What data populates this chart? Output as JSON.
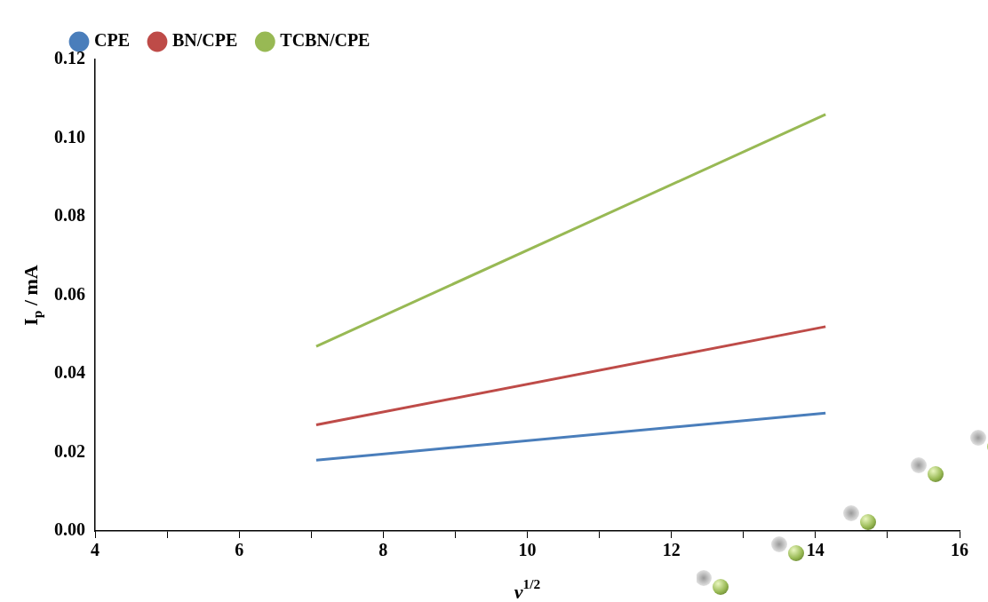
{
  "chart_data": {
    "type": "line",
    "xlabel": "ν$^{1/2}$",
    "ylabel": "I$_{p}$ / mA",
    "x": [
      7.07,
      14.14
    ],
    "series": [
      {
        "name": "CPE",
        "color": "#4a7ebb",
        "values": [
          0.018,
          0.03
        ]
      },
      {
        "name": "BN/CPE",
        "color": "#be4b48",
        "values": [
          0.027,
          0.052
        ]
      },
      {
        "name": "TCBN/CPE",
        "color": "#98b954",
        "values": [
          0.047,
          0.106
        ]
      }
    ],
    "xlim": [
      4,
      16
    ],
    "xticks": [
      4,
      {
        "value": 5,
        "label": null
      },
      6,
      {
        "value": 7,
        "label": null
      },
      8,
      {
        "value": 9,
        "label": null
      },
      10,
      {
        "value": 11,
        "label": null
      },
      12,
      {
        "value": 13,
        "label": null
      },
      14,
      {
        "value": 15,
        "label": null
      },
      16
    ],
    "ylim": [
      0,
      0.12
    ],
    "yticks": [
      {
        "value": 0,
        "label": "0.00"
      },
      {
        "value": 0.02,
        "label": "0.02"
      },
      {
        "value": 0.04,
        "label": "0.04"
      },
      {
        "value": 0.06,
        "label": "0.06"
      },
      {
        "value": 0.08,
        "label": "0.08"
      },
      {
        "value": 0.1,
        "label": "0.10"
      },
      {
        "value": 0.12,
        "label": "0.12"
      }
    ],
    "grid": false,
    "legend": "top",
    "marker": "none",
    "line_style": "solid"
  }
}
